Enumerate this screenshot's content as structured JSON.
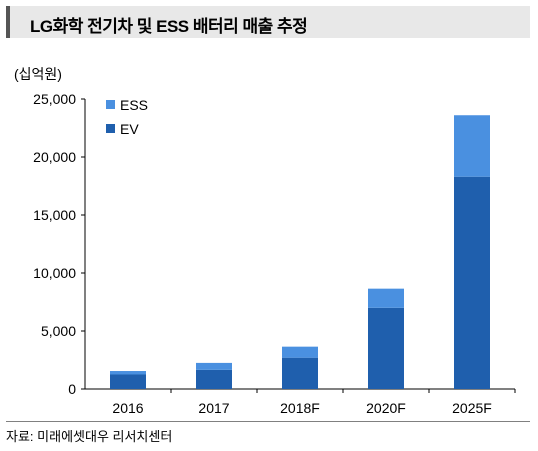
{
  "title": "LG화학 전기차 및 ESS 배터리 매출 추정",
  "unit_label": "(십억원)",
  "source": "자료: 미래에셋대우 리서치센터",
  "colors": {
    "EV": "#1f5fad",
    "ESS": "#4a90e0"
  },
  "chart_data": {
    "type": "bar",
    "stacked": true,
    "title": "LG화학 전기차 및 ESS 배터리 매출 추정",
    "ylabel": "(십억원)",
    "categories": [
      "2016",
      "2017",
      "2018F",
      "2020F",
      "2025F"
    ],
    "series": [
      {
        "name": "EV",
        "values": [
          1250,
          1650,
          2700,
          7000,
          18300
        ]
      },
      {
        "name": "ESS",
        "values": [
          300,
          600,
          950,
          1650,
          5300
        ]
      }
    ],
    "ylim": [
      0,
      25000
    ],
    "yticks": [
      "0",
      "5,000",
      "10,000",
      "15,000",
      "20,000",
      "25,000"
    ],
    "legend": [
      "ESS",
      "EV"
    ],
    "legend_position": "top-left",
    "grid": false
  }
}
